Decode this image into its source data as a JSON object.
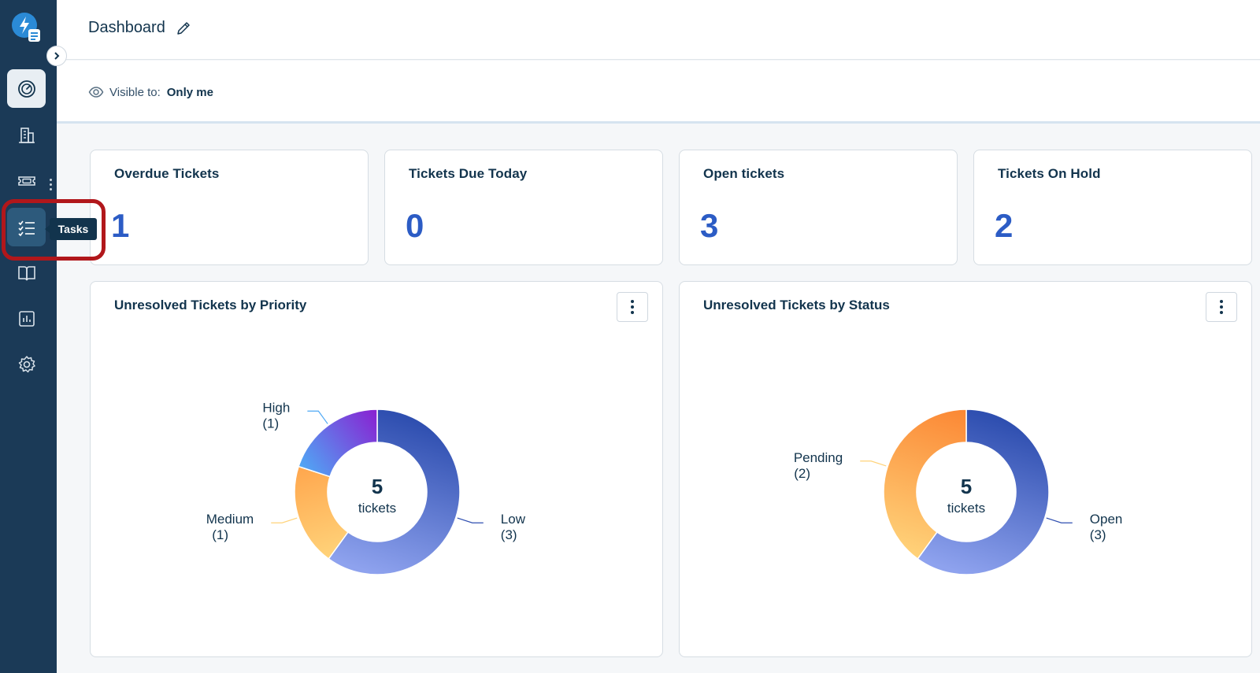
{
  "header": {
    "title": "Dashboard"
  },
  "visibility": {
    "label": "Visible to:",
    "value": "Only me"
  },
  "tooltip": {
    "text": "Tasks"
  },
  "sidebar": {
    "items": [
      {
        "name": "dashboard",
        "icon": "gauge-icon"
      },
      {
        "name": "companies",
        "icon": "building-icon"
      },
      {
        "name": "tickets",
        "icon": "ticket-icon"
      },
      {
        "name": "tasks",
        "icon": "task-list-icon"
      },
      {
        "name": "solutions",
        "icon": "book-icon"
      },
      {
        "name": "reports",
        "icon": "bar-chart-icon"
      },
      {
        "name": "admin",
        "icon": "gear-icon"
      }
    ]
  },
  "stats": [
    {
      "title": "Overdue Tickets",
      "value": "1"
    },
    {
      "title": "Tickets Due Today",
      "value": "0"
    },
    {
      "title": "Open tickets",
      "value": "3"
    },
    {
      "title": "Tickets On Hold",
      "value": "2"
    }
  ],
  "colors": {
    "accent": "#2c5cc5",
    "sidebar": "#1b3a57",
    "highlight": "#b1171b"
  },
  "chart_data": [
    {
      "type": "pie",
      "title": "Unresolved Tickets by Priority",
      "center_value": "5",
      "center_label": "tickets",
      "slices": [
        {
          "label": "Low",
          "value": 3,
          "display": "(3)",
          "color_start": "#2f4fb0",
          "color_end": "#8ea2ee"
        },
        {
          "label": "Medium",
          "value": 1,
          "display": "(1)",
          "color_start": "#ffd37a",
          "color_end": "#ffa64d"
        },
        {
          "label": "High",
          "value": 1,
          "display": "(1)",
          "color_start": "#4fa9f5",
          "color_end": "#8a1fd1"
        }
      ]
    },
    {
      "type": "pie",
      "title": "Unresolved Tickets by Status",
      "center_value": "5",
      "center_label": "tickets",
      "slices": [
        {
          "label": "Open",
          "value": 3,
          "display": "(3)",
          "color_start": "#2f4fb0",
          "color_end": "#8ea2ee"
        },
        {
          "label": "Pending",
          "value": 2,
          "display": "(2)",
          "color_start": "#ffd37a",
          "color_end": "#fb8734"
        }
      ]
    }
  ]
}
